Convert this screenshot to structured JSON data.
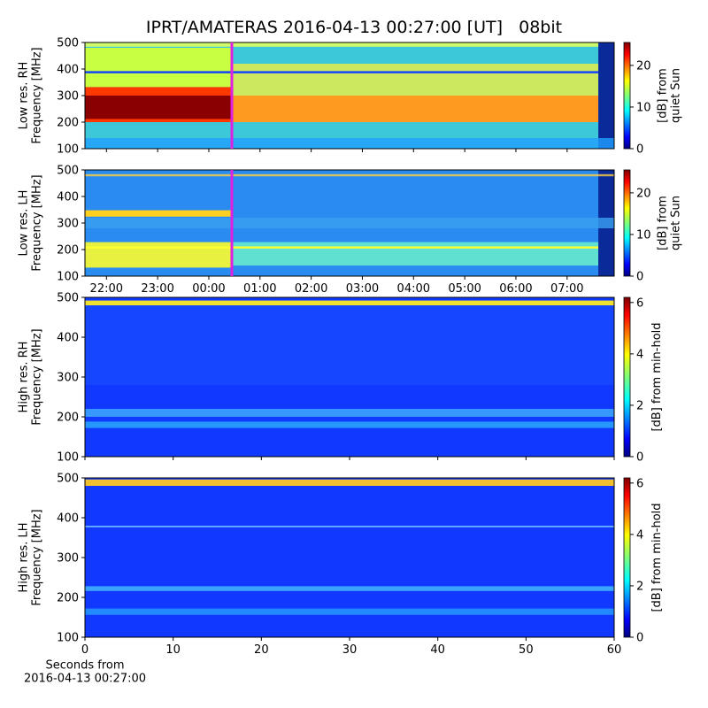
{
  "title": "IPRT/AMATERAS 2016-04-13 00:27:00 [UT]   08bit",
  "chart_data": [
    {
      "type": "heatmap",
      "ylabel": "Low res. RH\nFrequency [MHz]",
      "ylim": [
        100,
        500
      ],
      "yticks": [
        100,
        200,
        300,
        400,
        500
      ],
      "xlim": [
        21.58,
        31.92
      ],
      "marker": 24.45,
      "marker_color": "#e020e0",
      "colorbar": {
        "label": "[dB] from\nquiet Sun",
        "lim": [
          0,
          25.5
        ],
        "ticks": [
          0,
          10,
          20
        ]
      }
    },
    {
      "type": "heatmap",
      "ylabel": "Low res. LH\nFrequency [MHz]",
      "ylim": [
        100,
        500
      ],
      "yticks": [
        100,
        200,
        300,
        400,
        500
      ],
      "xlim": [
        21.58,
        31.92
      ],
      "marker": 24.45,
      "marker_color": "#e020e0",
      "xticks": [
        {
          "value": 22,
          "label": "22:00"
        },
        {
          "value": 23,
          "label": "23:00"
        },
        {
          "value": 24,
          "label": "00:00"
        },
        {
          "value": 25,
          "label": "01:00"
        },
        {
          "value": 26,
          "label": "02:00"
        },
        {
          "value": 27,
          "label": "03:00"
        },
        {
          "value": 28,
          "label": "04:00"
        },
        {
          "value": 29,
          "label": "05:00"
        },
        {
          "value": 30,
          "label": "06:00"
        },
        {
          "value": 31,
          "label": "07:00"
        }
      ],
      "colorbar": {
        "label": "[dB] from\nquiet Sun",
        "lim": [
          0,
          25.5
        ],
        "ticks": [
          0,
          10,
          20
        ]
      }
    },
    {
      "type": "heatmap",
      "ylabel": "High res. RH\nFrequency [MHz]",
      "ylim": [
        100,
        500
      ],
      "yticks": [
        100,
        200,
        300,
        400,
        500
      ],
      "xlim": [
        0,
        60
      ],
      "colorbar": {
        "label": "[dB] from min-hold",
        "lim": [
          0,
          6.2
        ],
        "ticks": [
          0,
          2,
          4,
          6
        ]
      }
    },
    {
      "type": "heatmap",
      "ylabel": "High res. LH\nFrequency [MHz]",
      "ylim": [
        100,
        500
      ],
      "yticks": [
        100,
        200,
        300,
        400,
        500
      ],
      "xlim": [
        0,
        60
      ],
      "xticks": [
        0,
        10,
        20,
        30,
        40,
        50,
        60
      ],
      "xlabel": "Seconds from\n2016-04-13 00:27:00",
      "colorbar": {
        "label": "[dB] from min-hold",
        "lim": [
          0,
          6.2
        ],
        "ticks": [
          0,
          2,
          4,
          6
        ]
      }
    }
  ]
}
